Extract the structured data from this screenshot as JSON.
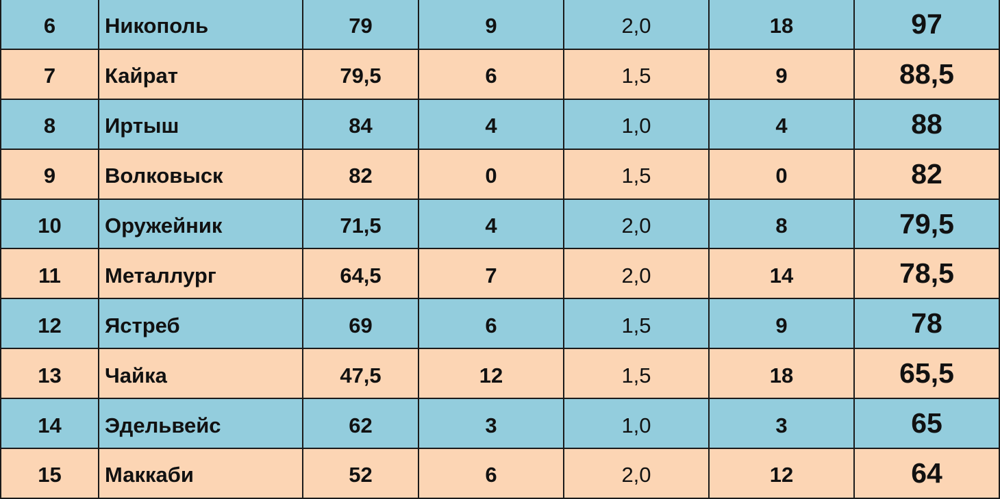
{
  "table": {
    "rows": [
      [
        "6",
        "Никополь",
        "79",
        "9",
        "2,0",
        "18",
        "97"
      ],
      [
        "7",
        "Кайрат",
        "79,5",
        "6",
        "1,5",
        "9",
        "88,5"
      ],
      [
        "8",
        "Иртыш",
        "84",
        "4",
        "1,0",
        "4",
        "88"
      ],
      [
        "9",
        "Волковыск",
        "82",
        "0",
        "1,5",
        "0",
        "82"
      ],
      [
        "10",
        "Оружейник",
        "71,5",
        "4",
        "2,0",
        "8",
        "79,5"
      ],
      [
        "11",
        "Металлург",
        "64,5",
        "7",
        "2,0",
        "14",
        "78,5"
      ],
      [
        "12",
        "Ястреб",
        "69",
        "6",
        "1,5",
        "9",
        "78"
      ],
      [
        "13",
        "Чайка",
        "47,5",
        "12",
        "1,5",
        "18",
        "65,5"
      ],
      [
        "14",
        "Эдельвейс",
        "62",
        "3",
        "1,0",
        "3",
        "65"
      ],
      [
        "15",
        "Маккаби",
        "52",
        "6",
        "2,0",
        "12",
        "64"
      ]
    ]
  }
}
